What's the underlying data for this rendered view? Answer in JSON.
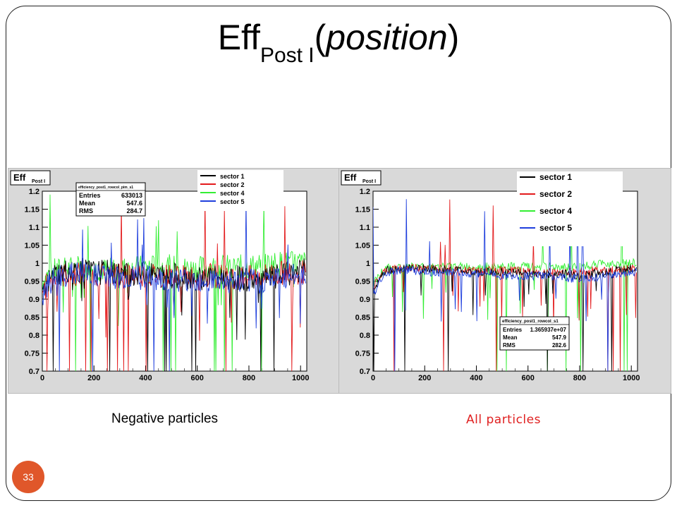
{
  "slide": {
    "title_main": "Eff",
    "title_sub": "Post I",
    "title_open": "(",
    "title_var": "position",
    "title_close": ")",
    "caption_left": "Negative particles",
    "caption_right": "All particles",
    "page_number": "33"
  },
  "colors": {
    "caption_right": "#e02020",
    "page_badge": "#e0572a",
    "panel_bg": "#d9d9d9",
    "sector1": "#000000",
    "sector2": "#e31a1c",
    "sector4": "#33ee33",
    "sector5": "#1f3fdd"
  },
  "chart_data": [
    {
      "type": "line",
      "title_main": "Eff",
      "title_sub": "Post I",
      "xlim": [
        0,
        1024
      ],
      "ylim": [
        0.7,
        1.2
      ],
      "x_ticks": [
        "0",
        "200",
        "400",
        "600",
        "800",
        "1000"
      ],
      "y_ticks": [
        "0.7",
        "0.75",
        "0.8",
        "0.85",
        "0.9",
        "0.95",
        "1",
        "1.05",
        "1.1",
        "1.15",
        "1.2"
      ],
      "stats": {
        "name": "efficiency_post1_rowcol_pim_s1",
        "rows": [
          {
            "label": "Entries",
            "value": "633013"
          },
          {
            "label": "Mean",
            "value": "547.6"
          },
          {
            "label": "RMS",
            "value": "284.7"
          }
        ]
      },
      "legend_position": "top-right",
      "series": [
        {
          "name": "sector 1",
          "color": "#000000"
        },
        {
          "name": "sector 2",
          "color": "#e31a1c"
        },
        {
          "name": "sector 4",
          "color": "#33ee33"
        },
        {
          "name": "sector 5",
          "color": "#1f3fdd"
        }
      ],
      "x": [
        0,
        25,
        50,
        100,
        150,
        200,
        250,
        300,
        350,
        400,
        450,
        500,
        550,
        600,
        650,
        700,
        750,
        800,
        850,
        900,
        950,
        1000,
        1020
      ],
      "series_values": {
        "sector 1": [
          0.9,
          0.95,
          0.97,
          0.98,
          0.98,
          0.975,
          0.975,
          0.97,
          0.97,
          0.97,
          0.965,
          0.965,
          0.965,
          0.96,
          0.96,
          0.96,
          0.96,
          0.955,
          0.955,
          0.96,
          0.97,
          0.98,
          0.98
        ],
        "sector 2": [
          0.92,
          0.95,
          0.96,
          0.97,
          0.97,
          0.97,
          0.97,
          0.97,
          0.97,
          0.97,
          0.965,
          0.965,
          0.96,
          0.965,
          0.965,
          0.965,
          0.96,
          0.96,
          0.965,
          0.97,
          0.975,
          0.975,
          0.975
        ],
        "sector 4": [
          0.95,
          0.97,
          0.98,
          0.985,
          0.985,
          0.985,
          0.98,
          0.985,
          0.985,
          0.99,
          0.99,
          0.99,
          0.985,
          0.985,
          0.99,
          0.99,
          0.99,
          0.99,
          0.995,
          1.0,
          1.0,
          1.0,
          1.0
        ],
        "sector 5": [
          0.9,
          0.94,
          0.96,
          0.97,
          0.97,
          0.965,
          0.965,
          0.96,
          0.96,
          0.96,
          0.955,
          0.955,
          0.955,
          0.955,
          0.955,
          0.95,
          0.95,
          0.95,
          0.95,
          0.955,
          0.96,
          0.97,
          0.97
        ]
      }
    },
    {
      "type": "line",
      "title_main": "Eff",
      "title_sub": "Post I",
      "xlim": [
        0,
        1024
      ],
      "ylim": [
        0.7,
        1.2
      ],
      "x_ticks": [
        "0",
        "200",
        "400",
        "600",
        "800",
        "1000"
      ],
      "y_ticks": [
        "0.7",
        "0.75",
        "0.8",
        "0.85",
        "0.9",
        "0.95",
        "1",
        "1.05",
        "1.1",
        "1.15",
        "1.2"
      ],
      "stats": {
        "name": "efficiency_post1_rowcol_s1",
        "rows": [
          {
            "label": "Entries",
            "value": "1.365937e+07"
          },
          {
            "label": "Mean",
            "value": "547.9"
          },
          {
            "label": "RMS",
            "value": "282.6"
          }
        ]
      },
      "legend_position": "top-right",
      "series": [
        {
          "name": "sector 1",
          "color": "#000000"
        },
        {
          "name": "sector 2",
          "color": "#e31a1c"
        },
        {
          "name": "sector 4",
          "color": "#33ee33"
        },
        {
          "name": "sector 5",
          "color": "#1f3fdd"
        }
      ],
      "x": [
        0,
        25,
        50,
        100,
        150,
        200,
        250,
        300,
        350,
        400,
        450,
        500,
        550,
        600,
        650,
        700,
        750,
        800,
        850,
        900,
        950,
        1000,
        1020
      ],
      "series_values": {
        "sector 1": [
          0.92,
          0.96,
          0.98,
          0.985,
          0.985,
          0.985,
          0.98,
          0.98,
          0.98,
          0.975,
          0.975,
          0.975,
          0.975,
          0.97,
          0.97,
          0.97,
          0.97,
          0.965,
          0.97,
          0.975,
          0.98,
          0.985,
          0.985
        ],
        "sector 2": [
          0.93,
          0.96,
          0.98,
          0.985,
          0.985,
          0.985,
          0.985,
          0.98,
          0.98,
          0.98,
          0.98,
          0.98,
          0.98,
          0.975,
          0.975,
          0.975,
          0.975,
          0.975,
          0.98,
          0.98,
          0.985,
          0.985,
          0.985
        ],
        "sector 4": [
          0.94,
          0.97,
          0.985,
          0.99,
          0.99,
          0.99,
          0.99,
          0.99,
          0.99,
          0.99,
          0.99,
          0.99,
          0.99,
          0.99,
          0.99,
          0.99,
          0.99,
          0.99,
          0.995,
          1.0,
          1.0,
          1.0,
          1.0
        ],
        "sector 5": [
          0.9,
          0.95,
          0.975,
          0.98,
          0.98,
          0.975,
          0.975,
          0.975,
          0.97,
          0.97,
          0.97,
          0.965,
          0.965,
          0.965,
          0.965,
          0.96,
          0.96,
          0.955,
          0.96,
          0.965,
          0.97,
          0.975,
          0.975
        ]
      }
    }
  ]
}
